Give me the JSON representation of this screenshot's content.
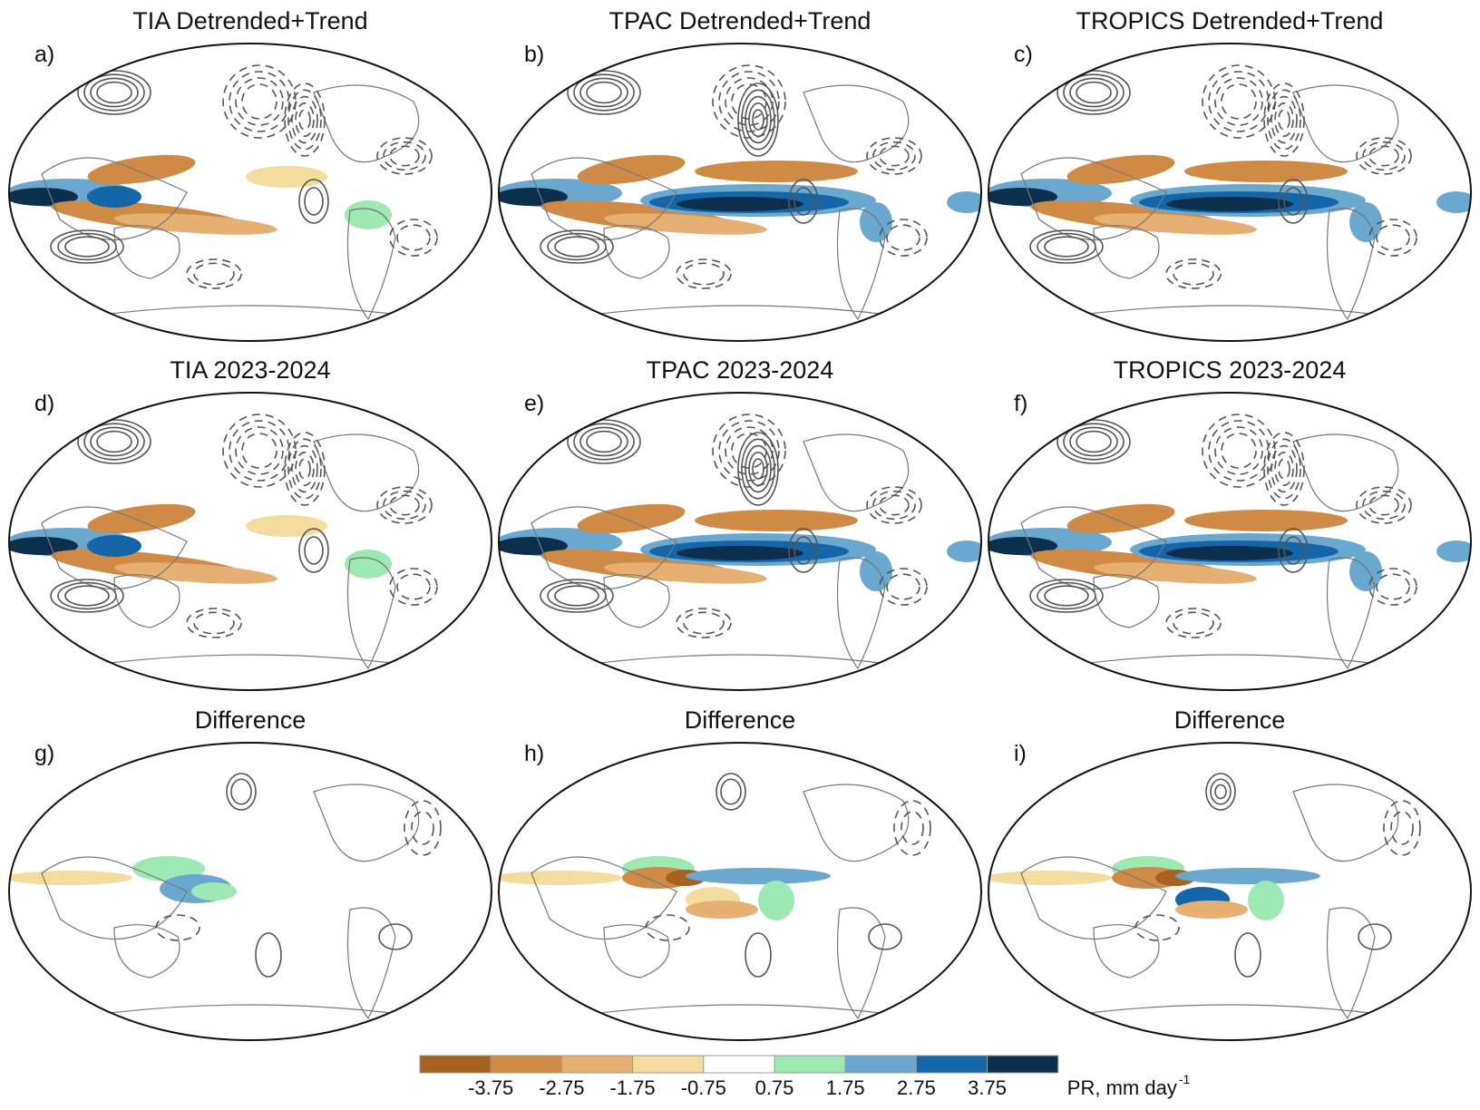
{
  "panels": [
    {
      "label": "a)",
      "title": "TIA Detrended+Trend"
    },
    {
      "label": "b)",
      "title": "TPAC Detrended+Trend"
    },
    {
      "label": "c)",
      "title": "TROPICS Detrended+Trend"
    },
    {
      "label": "d)",
      "title": "TIA 2023-2024"
    },
    {
      "label": "e)",
      "title": "TPAC 2023-2024"
    },
    {
      "label": "f)",
      "title": "TROPICS 2023-2024"
    },
    {
      "label": "g)",
      "title": "Difference"
    },
    {
      "label": "h)",
      "title": "Difference"
    },
    {
      "label": "i)",
      "title": "Difference"
    }
  ],
  "colorbar": {
    "colors": [
      "#a8621f",
      "#cf8a45",
      "#e6b073",
      "#f3dc9e",
      "#ffffff",
      "#9de8b3",
      "#6aa8cf",
      "#1566a8",
      "#0b2f4d"
    ],
    "tick_labels": [
      "-3.75",
      "-2.75",
      "-1.75",
      "-0.75",
      "0.75",
      "1.75",
      "2.75",
      "3.75"
    ],
    "units_label": "PR, mm day",
    "units_exponent": "-1"
  }
}
